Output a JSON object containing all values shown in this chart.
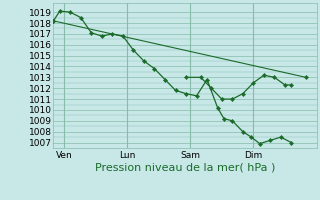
{
  "bg_color": "#c8e8e8",
  "grid_color": "#88bbaa",
  "line_color": "#1a6b2a",
  "ylim": [
    1006.5,
    1019.8
  ],
  "yticks": [
    1007,
    1008,
    1009,
    1010,
    1011,
    1012,
    1013,
    1014,
    1015,
    1016,
    1017,
    1018,
    1019
  ],
  "xlabel": "Pression niveau de la mer( hPa )",
  "xlabel_fontsize": 8,
  "tick_fontsize": 6.5,
  "day_labels": [
    "Ven",
    "Lun",
    "Sam",
    "Dim"
  ],
  "day_positions": [
    0.5,
    3.5,
    6.5,
    9.5
  ],
  "vline_positions": [
    0.5,
    3.5,
    6.5,
    9.5
  ],
  "trend_x": [
    0.0,
    12.0
  ],
  "trend_y": [
    1018.2,
    1013.0
  ],
  "data_x": [
    0.0,
    0.3,
    0.8,
    1.3,
    1.8,
    2.3,
    2.8,
    3.3,
    3.8,
    4.3,
    4.8,
    5.3,
    5.8,
    6.3,
    6.8,
    7.3,
    7.8,
    8.1,
    8.5,
    9.0,
    9.4,
    9.8,
    10.3,
    10.8,
    11.3
  ],
  "data_y": [
    1018.2,
    1019.1,
    1019.0,
    1018.5,
    1017.1,
    1016.8,
    1017.0,
    1016.8,
    1015.5,
    1014.5,
    1013.8,
    1012.8,
    1011.8,
    1011.5,
    1011.3,
    1012.8,
    1010.2,
    1009.2,
    1009.0,
    1008.0,
    1007.5,
    1006.9,
    1007.2,
    1007.5,
    1007.0
  ],
  "data2_x": [
    6.3,
    7.0,
    7.5,
    8.0,
    8.5,
    9.0,
    9.5,
    10.0,
    10.5,
    11.0,
    11.3
  ],
  "data2_y": [
    1013.0,
    1013.0,
    1012.0,
    1011.0,
    1011.0,
    1011.5,
    1012.5,
    1013.2,
    1013.0,
    1012.3,
    1012.3
  ],
  "xlim": [
    0.0,
    12.5
  ]
}
